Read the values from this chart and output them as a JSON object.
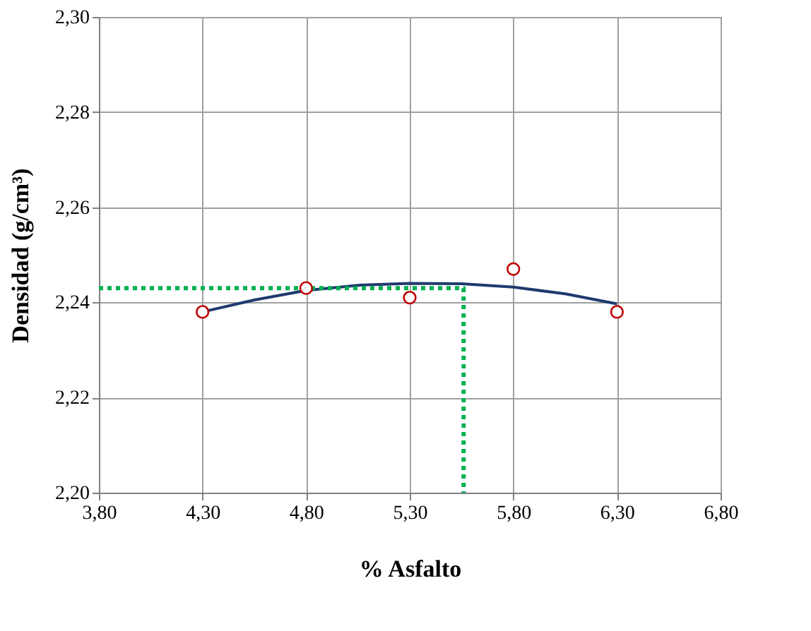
{
  "chart_data": {
    "type": "scatter",
    "xlabel": "% Asfalto",
    "ylabel": "Densidad (g/cm³)",
    "xlim": [
      3.8,
      6.8
    ],
    "ylim": [
      2.2,
      2.3
    ],
    "xticks": [
      {
        "value": 3.8,
        "label": "3,80"
      },
      {
        "value": 4.3,
        "label": "4,30"
      },
      {
        "value": 4.8,
        "label": "4,80"
      },
      {
        "value": 5.3,
        "label": "5,30"
      },
      {
        "value": 5.8,
        "label": "5,80"
      },
      {
        "value": 6.3,
        "label": "6,30"
      },
      {
        "value": 6.8,
        "label": "6,80"
      }
    ],
    "yticks": [
      {
        "value": 2.2,
        "label": "2,20"
      },
      {
        "value": 2.22,
        "label": "2,22"
      },
      {
        "value": 2.24,
        "label": "2,24"
      },
      {
        "value": 2.26,
        "label": "2,26"
      },
      {
        "value": 2.28,
        "label": "2,28"
      },
      {
        "value": 2.3,
        "label": "2,30"
      }
    ],
    "grid": true,
    "legend": false,
    "series": [
      {
        "type": "line",
        "color": "#1f3a6e",
        "line_style": "solid",
        "marker": "none",
        "x": [
          4.3,
          4.55,
          4.8,
          5.05,
          5.3,
          5.55,
          5.8,
          6.05,
          6.3
        ],
        "values": [
          2.238,
          2.2405,
          2.2425,
          2.2436,
          2.244,
          2.2439,
          2.2432,
          2.2418,
          2.2397
        ]
      },
      {
        "type": "line",
        "color": "#00b050",
        "line_style": "dotted",
        "marker": "none",
        "x": [
          3.8,
          5.56,
          5.56
        ],
        "values": [
          2.243,
          2.243,
          2.2
        ]
      },
      {
        "type": "scatter",
        "color": "#c00000",
        "marker": "circle",
        "x": [
          4.3,
          4.8,
          5.3,
          5.8,
          6.3
        ],
        "values": [
          2.238,
          2.243,
          2.241,
          2.247,
          2.238
        ]
      }
    ]
  }
}
